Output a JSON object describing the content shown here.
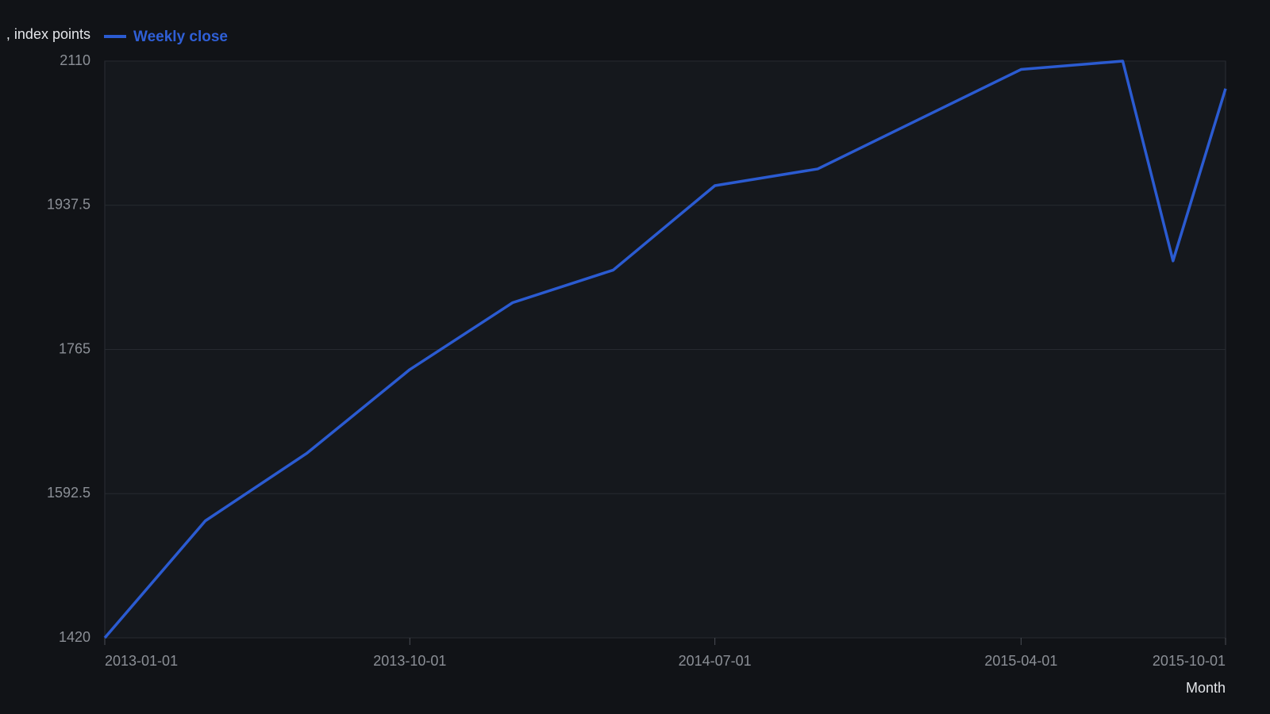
{
  "chart_data": {
    "type": "line",
    "y_label": ", index points",
    "x_label": "Month",
    "x": [
      "2013-01-01",
      "2013-04-01",
      "2013-07-01",
      "2013-10-01",
      "2014-01-01",
      "2014-04-01",
      "2014-07-01",
      "2014-10-01",
      "2015-04-01",
      "2015-07-01",
      "2015-08-15",
      "2015-10-01"
    ],
    "series": [
      {
        "name": "Weekly close",
        "color": "#2b5bd1",
        "values": [
          1420,
          1560,
          1641,
          1741,
          1821,
          1860,
          1961,
          1981,
          2100,
          2110,
          1871,
          2077
        ]
      }
    ],
    "xlim": [
      "2013-01-01",
      "2015-10-01"
    ],
    "xticks": [
      "2013-01-01",
      "2013-10-01",
      "2014-07-01",
      "2015-04-01",
      "2015-10-01"
    ],
    "ylim": [
      1420,
      2110
    ],
    "yticks": [
      1420,
      1592.5,
      1765,
      1937.5,
      2110
    ],
    "grid": true
  }
}
